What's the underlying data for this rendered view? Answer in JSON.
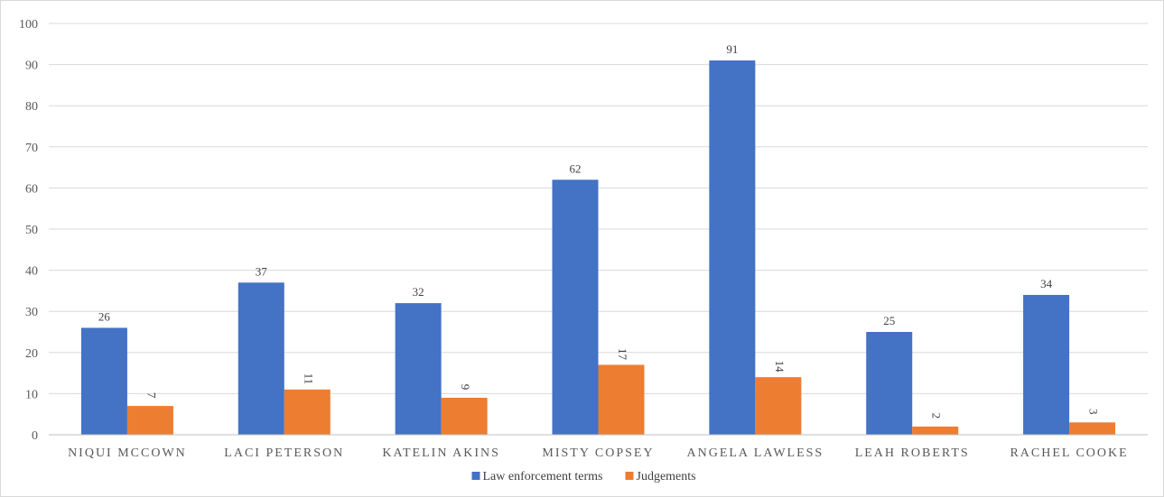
{
  "chart_data": {
    "type": "bar",
    "title": "",
    "xlabel": "",
    "ylabel": "",
    "ylim": [
      0,
      100
    ],
    "yticks": [
      0,
      10,
      20,
      30,
      40,
      50,
      60,
      70,
      80,
      90,
      100
    ],
    "grid": true,
    "legend_position": "bottom",
    "categories": [
      "NIQUI MCCOWN",
      "LACI PETERSON",
      "KATELIN AKINS",
      "MISTY COPSEY",
      "ANGELA LAWLESS",
      "LEAH ROBERTS",
      "RACHEL COOKE"
    ],
    "series": [
      {
        "name": "Law enforcement terms",
        "color": "#4472C4",
        "values": [
          26,
          37,
          32,
          62,
          91,
          25,
          34
        ]
      },
      {
        "name": "Judgements",
        "color": "#ED7D31",
        "values": [
          7,
          11,
          9,
          17,
          14,
          2,
          3
        ]
      }
    ]
  }
}
